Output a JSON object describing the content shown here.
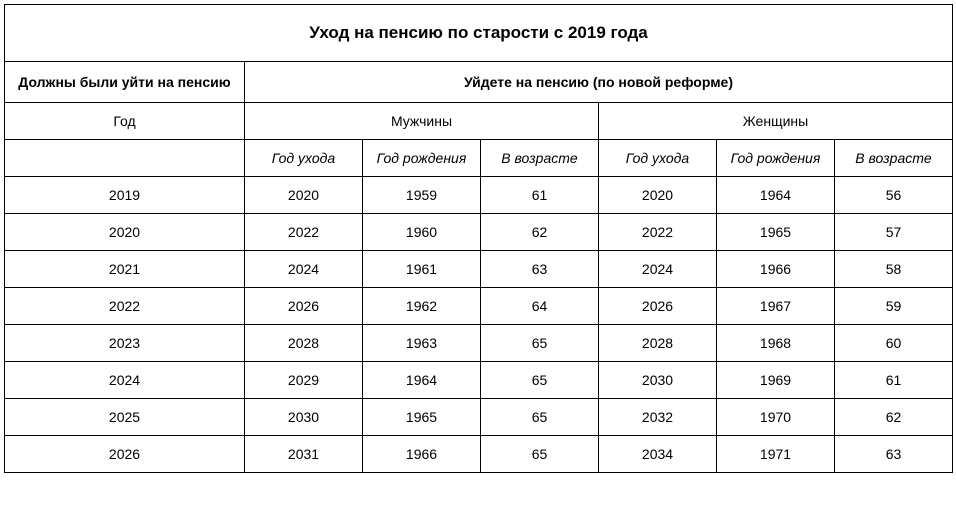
{
  "title": "Уход на пенсию по старости с 2019 года",
  "header_left": "Должны были уйти на пенсию",
  "header_right": "Уйдете на пенсию (по новой реформе)",
  "year_label": "Год",
  "men_label": "Мужчины",
  "women_label": "Женщины",
  "subcols": {
    "leave_year": "Год ухода",
    "birth_year": "Год рождения",
    "age": "В возрасте"
  },
  "rows": [
    {
      "year": "2019",
      "m_leave": "2020",
      "m_birth": "1959",
      "m_age": "61",
      "w_leave": "2020",
      "w_birth": "1964",
      "w_age": "56"
    },
    {
      "year": "2020",
      "m_leave": "2022",
      "m_birth": "1960",
      "m_age": "62",
      "w_leave": "2022",
      "w_birth": "1965",
      "w_age": "57"
    },
    {
      "year": "2021",
      "m_leave": "2024",
      "m_birth": "1961",
      "m_age": "63",
      "w_leave": "2024",
      "w_birth": "1966",
      "w_age": "58"
    },
    {
      "year": "2022",
      "m_leave": "2026",
      "m_birth": "1962",
      "m_age": "64",
      "w_leave": "2026",
      "w_birth": "1967",
      "w_age": "59"
    },
    {
      "year": "2023",
      "m_leave": "2028",
      "m_birth": "1963",
      "m_age": "65",
      "w_leave": "2028",
      "w_birth": "1968",
      "w_age": "60"
    },
    {
      "year": "2024",
      "m_leave": "2029",
      "m_birth": "1964",
      "m_age": "65",
      "w_leave": "2030",
      "w_birth": "1969",
      "w_age": "61"
    },
    {
      "year": "2025",
      "m_leave": "2030",
      "m_birth": "1965",
      "m_age": "65",
      "w_leave": "2032",
      "w_birth": "1970",
      "w_age": "62"
    },
    {
      "year": "2026",
      "m_leave": "2031",
      "m_birth": "1966",
      "m_age": "65",
      "w_leave": "2034",
      "w_birth": "1971",
      "w_age": "63"
    }
  ],
  "colors": {
    "border": "#000000",
    "background": "#ffffff",
    "text": "#000000"
  },
  "fonts": {
    "title_size_pt": 13,
    "header_size_pt": 11,
    "cell_size_pt": 11,
    "family": "Arial"
  }
}
